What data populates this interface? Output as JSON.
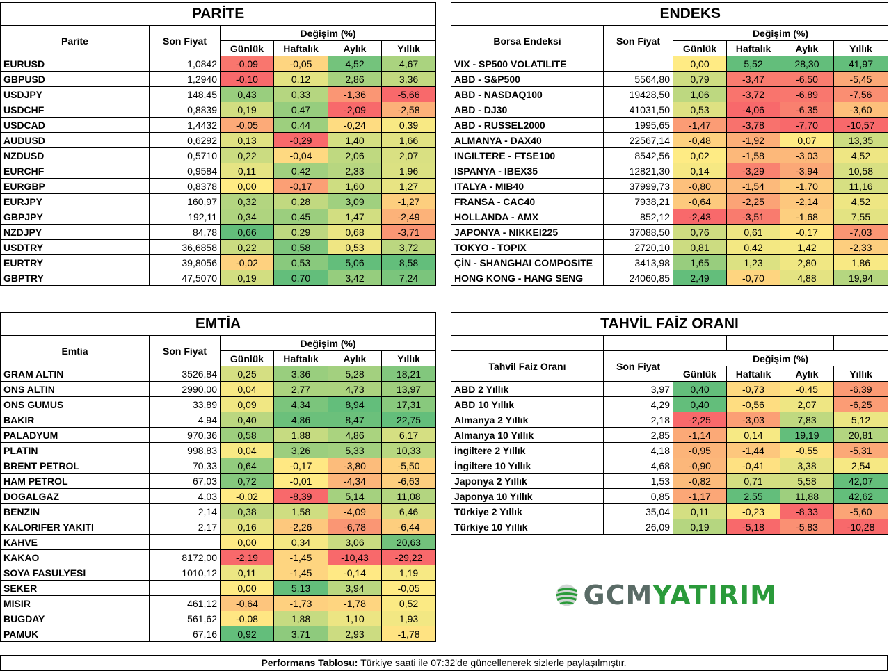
{
  "parite": {
    "title": "PARİTE",
    "col_name": "Parite",
    "col_price": "Son Fiyat",
    "col_change": "Değişim (%)",
    "periods": [
      "Günlük",
      "Haftalık",
      "Aylık",
      "Yıllık"
    ],
    "rows": [
      {
        "name": "EURUSD",
        "price": "1,0842",
        "d": "-0,09",
        "w": "-0,05",
        "m": "4,52",
        "y": "4,67"
      },
      {
        "name": "GBPUSD",
        "price": "1,2940",
        "d": "-0,10",
        "w": "0,12",
        "m": "2,86",
        "y": "3,36"
      },
      {
        "name": "USDJPY",
        "price": "148,45",
        "d": "0,43",
        "w": "0,33",
        "m": "-1,36",
        "y": "-5,66"
      },
      {
        "name": "USDCHF",
        "price": "0,8839",
        "d": "0,19",
        "w": "0,47",
        "m": "-2,09",
        "y": "-2,58"
      },
      {
        "name": "USDCAD",
        "price": "1,4432",
        "d": "-0,05",
        "w": "0,44",
        "m": "-0,24",
        "y": "0,39"
      },
      {
        "name": "AUDUSD",
        "price": "0,6292",
        "d": "0,13",
        "w": "-0,29",
        "m": "1,40",
        "y": "1,66"
      },
      {
        "name": "NZDUSD",
        "price": "0,5710",
        "d": "0,22",
        "w": "-0,04",
        "m": "2,06",
        "y": "2,07"
      },
      {
        "name": "EURCHF",
        "price": "0,9584",
        "d": "0,11",
        "w": "0,42",
        "m": "2,33",
        "y": "1,96"
      },
      {
        "name": "EURGBP",
        "price": "0,8378",
        "d": "0,00",
        "w": "-0,17",
        "m": "1,60",
        "y": "1,27"
      },
      {
        "name": "EURJPY",
        "price": "160,97",
        "d": "0,32",
        "w": "0,28",
        "m": "3,09",
        "y": "-1,27"
      },
      {
        "name": "GBPJPY",
        "price": "192,11",
        "d": "0,34",
        "w": "0,45",
        "m": "1,47",
        "y": "-2,49"
      },
      {
        "name": "NZDJPY",
        "price": "84,78",
        "d": "0,66",
        "w": "0,29",
        "m": "0,68",
        "y": "-3,71"
      },
      {
        "name": "USDTRY",
        "price": "36,6858",
        "d": "0,22",
        "w": "0,58",
        "m": "0,53",
        "y": "3,72"
      },
      {
        "name": "EURTRY",
        "price": "39,8056",
        "d": "-0,02",
        "w": "0,53",
        "m": "5,06",
        "y": "8,58"
      },
      {
        "name": "GBPTRY",
        "price": "47,5070",
        "d": "0,19",
        "w": "0,70",
        "m": "3,42",
        "y": "7,24"
      }
    ]
  },
  "endeks": {
    "title": "ENDEKS",
    "col_name": "Borsa Endeksi",
    "col_price": "Son Fiyat",
    "col_change": "Değişim (%)",
    "periods": [
      "Günlük",
      "Haftalık",
      "Aylık",
      "Yıllık"
    ],
    "rows": [
      {
        "name": "VIX  - SP500 VOLATILITE",
        "price": "",
        "d": "0,00",
        "w": "5,52",
        "m": "28,30",
        "y": "41,97"
      },
      {
        "name": "ABD - S&P500",
        "price": "5564,80",
        "d": "0,79",
        "w": "-3,47",
        "m": "-6,50",
        "y": "-5,45"
      },
      {
        "name": "ABD - NASDAQ100",
        "price": "19428,50",
        "d": "1,06",
        "w": "-3,72",
        "m": "-6,89",
        "y": "-7,56"
      },
      {
        "name": "ABD - DJ30",
        "price": "41031,50",
        "d": "0,53",
        "w": "-4,06",
        "m": "-6,35",
        "y": "-3,60"
      },
      {
        "name": "ABD - RUSSEL2000",
        "price": "1995,65",
        "d": "-1,47",
        "w": "-3,78",
        "m": "-7,70",
        "y": "-10,57"
      },
      {
        "name": "ALMANYA - DAX40",
        "price": "22567,14",
        "d": "-0,48",
        "w": "-1,92",
        "m": "0,07",
        "y": "13,35"
      },
      {
        "name": "INGILTERE - FTSE100",
        "price": "8542,56",
        "d": "0,02",
        "w": "-1,58",
        "m": "-3,03",
        "y": "4,52"
      },
      {
        "name": "ISPANYA - IBEX35",
        "price": "12821,30",
        "d": "0,14",
        "w": "-3,29",
        "m": "-3,94",
        "y": "10,58"
      },
      {
        "name": "ITALYA - MIB40",
        "price": "37999,73",
        "d": "-0,80",
        "w": "-1,54",
        "m": "-1,70",
        "y": "11,16"
      },
      {
        "name": "FRANSA - CAC40",
        "price": "7938,21",
        "d": "-0,64",
        "w": "-2,25",
        "m": "-2,14",
        "y": "4,52"
      },
      {
        "name": "HOLLANDA - AMX",
        "price": "852,12",
        "d": "-2,43",
        "w": "-3,51",
        "m": "-1,68",
        "y": "7,55"
      },
      {
        "name": "JAPONYA - NIKKEI225",
        "price": "37088,50",
        "d": "0,76",
        "w": "0,61",
        "m": "-0,17",
        "y": "-7,03"
      },
      {
        "name": "TOKYO - TOPIX",
        "price": "2720,10",
        "d": "0,81",
        "w": "0,42",
        "m": "1,42",
        "y": "-2,33"
      },
      {
        "name": "ÇİN - SHANGHAI COMPOSITE",
        "price": "3413,98",
        "d": "1,65",
        "w": "1,23",
        "m": "2,80",
        "y": "1,86"
      },
      {
        "name": "HONG KONG - HANG SENG",
        "price": "24060,85",
        "d": "2,49",
        "w": "-0,70",
        "m": "4,88",
        "y": "19,94"
      }
    ]
  },
  "emtia": {
    "title": "EMTİA",
    "col_name": "Emtia",
    "col_price": "Son Fiyat",
    "col_change": "Değişim (%)",
    "periods": [
      "Günlük",
      "Haftalık",
      "Aylık",
      "Yıllık"
    ],
    "rows": [
      {
        "name": "GRAM ALTIN",
        "price": "3526,84",
        "d": "0,25",
        "w": "3,36",
        "m": "5,28",
        "y": "18,21"
      },
      {
        "name": "ONS ALTIN",
        "price": "2990,00",
        "d": "0,04",
        "w": "2,77",
        "m": "4,73",
        "y": "13,97"
      },
      {
        "name": "ONS GUMUS",
        "price": "33,89",
        "d": "0,09",
        "w": "4,34",
        "m": "8,94",
        "y": "17,31"
      },
      {
        "name": "BAKIR",
        "price": "4,94",
        "d": "0,40",
        "w": "4,86",
        "m": "8,47",
        "y": "22,75"
      },
      {
        "name": "PALADYUM",
        "price": "970,36",
        "d": "0,58",
        "w": "1,88",
        "m": "4,86",
        "y": "6,17"
      },
      {
        "name": "PLATIN",
        "price": "998,83",
        "d": "0,04",
        "w": "3,26",
        "m": "5,33",
        "y": "10,33"
      },
      {
        "name": "BRENT PETROL",
        "price": "70,33",
        "d": "0,64",
        "w": "-0,17",
        "m": "-3,80",
        "y": "-5,50"
      },
      {
        "name": "HAM PETROL",
        "price": "67,03",
        "d": "0,72",
        "w": "-0,01",
        "m": "-4,34",
        "y": "-6,63"
      },
      {
        "name": "DOGALGAZ",
        "price": "4,03",
        "d": "-0,02",
        "w": "-8,39",
        "m": "5,14",
        "y": "11,08"
      },
      {
        "name": "BENZIN",
        "price": "2,14",
        "d": "0,38",
        "w": "1,58",
        "m": "-4,09",
        "y": "6,46"
      },
      {
        "name": "KALORIFER YAKITI",
        "price": "2,17",
        "d": "0,16",
        "w": "-2,26",
        "m": "-6,78",
        "y": "-6,44"
      },
      {
        "name": "KAHVE",
        "price": "",
        "d": "0,00",
        "w": "0,34",
        "m": "3,06",
        "y": "20,63"
      },
      {
        "name": "KAKAO",
        "price": "8172,00",
        "d": "-2,19",
        "w": "-1,45",
        "m": "-10,43",
        "y": "-29,22"
      },
      {
        "name": "SOYA FASULYESI",
        "price": "1010,12",
        "d": "0,11",
        "w": "-1,45",
        "m": "-0,14",
        "y": "1,19"
      },
      {
        "name": "SEKER",
        "price": "",
        "d": "0,00",
        "w": "5,13",
        "m": "3,94",
        "y": "-0,05"
      },
      {
        "name": "MISIR",
        "price": "461,12",
        "d": "-0,64",
        "w": "-1,73",
        "m": "-1,78",
        "y": "0,52"
      },
      {
        "name": "BUGDAY",
        "price": "561,62",
        "d": "-0,08",
        "w": "1,88",
        "m": "1,10",
        "y": "1,93"
      },
      {
        "name": "PAMUK",
        "price": "67,16",
        "d": "0,92",
        "w": "3,71",
        "m": "2,93",
        "y": "-1,78"
      }
    ]
  },
  "tahvil": {
    "title": "TAHVİL FAİZ ORANI",
    "col_name": "Tahvil Faiz Oranı",
    "col_price": "Son Fiyat",
    "col_change": "Değişim (%)",
    "periods": [
      "Günlük",
      "Haftalık",
      "Aylık",
      "Yıllık"
    ],
    "rows": [
      {
        "name": "ABD 2 Yıllık",
        "price": "3,97",
        "d": "0,40",
        "w": "-0,73",
        "m": "-0,45",
        "y": "-6,39"
      },
      {
        "name": "ABD 10 Yıllık",
        "price": "4,29",
        "d": "0,40",
        "w": "-0,56",
        "m": "2,07",
        "y": "-6,25"
      },
      {
        "name": "Almanya 2 Yıllık",
        "price": "2,18",
        "d": "-2,25",
        "w": "-3,03",
        "m": "7,83",
        "y": "5,12"
      },
      {
        "name": "Almanya 10 Yıllık",
        "price": "2,85",
        "d": "-1,14",
        "w": "0,14",
        "m": "19,19",
        "y": "20,81"
      },
      {
        "name": "İngiltere 2 Yıllık",
        "price": "4,18",
        "d": "-0,95",
        "w": "-1,44",
        "m": "-0,55",
        "y": "-5,31"
      },
      {
        "name": "İngiltere 10 Yıllık",
        "price": "4,68",
        "d": "-0,90",
        "w": "-0,41",
        "m": "3,38",
        "y": "2,54"
      },
      {
        "name": "Japonya 2 Yıllık",
        "price": "1,53",
        "d": "-0,82",
        "w": "0,71",
        "m": "5,58",
        "y": "42,07"
      },
      {
        "name": "Japonya 10 Yıllık",
        "price": "0,85",
        "d": "-1,17",
        "w": "2,55",
        "m": "11,88",
        "y": "42,62"
      },
      {
        "name": "Türkiye 2 Yıllık",
        "price": "35,04",
        "d": "0,11",
        "w": "-0,23",
        "m": "-8,33",
        "y": "-5,60"
      },
      {
        "name": "Türkiye 10 Yıllık",
        "price": "26,09",
        "d": "0,19",
        "w": "-5,18",
        "m": "-5,83",
        "y": "-10,28"
      }
    ]
  },
  "logo": {
    "part1": "GCM",
    "part2": "YATIRIM"
  },
  "footer": {
    "bold": "Performans Tablosu:",
    "text": " Türkiye saati ile 07:32'de güncellenerek sizlerle paylaşılmıştır."
  },
  "colors": {
    "red": "#f8696b",
    "yellow": "#ffeb84",
    "green": "#63be7b",
    "border": "#000000"
  }
}
